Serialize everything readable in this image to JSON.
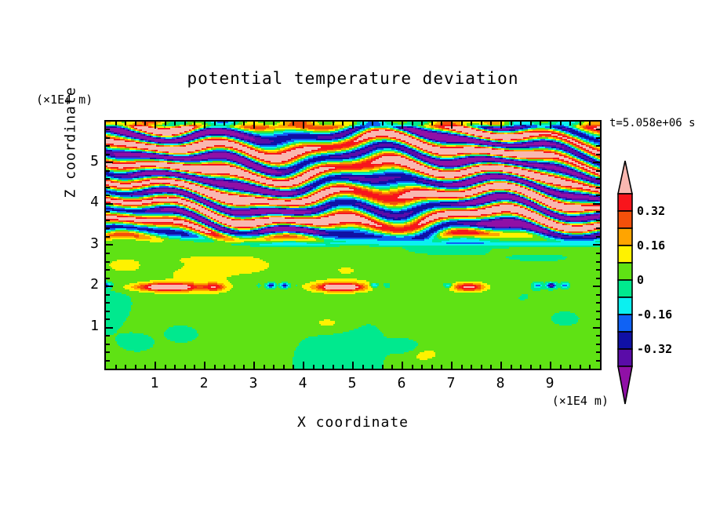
{
  "colors": {
    "background": "#FFFFFF",
    "frame": "#000000",
    "text": "#000000"
  },
  "chart_data": {
    "type": "heatmap",
    "title": "potential temperature deviation",
    "xlabel": "X coordinate",
    "ylabel": "Z coordinate",
    "x_axis_unit": "(×1E4 m)",
    "z_axis_unit": "(×1E4 m)",
    "time_annotation": "t=5.058e+06 s",
    "x_range": [
      0,
      10
    ],
    "z_range": [
      0,
      6
    ],
    "x_major_ticks": [
      "1",
      "2",
      "3",
      "4",
      "5",
      "6",
      "7",
      "8",
      "9"
    ],
    "z_major_ticks": [
      "1",
      "2",
      "3",
      "4",
      "5"
    ],
    "minor_tick_step": 0.2,
    "grid": false,
    "legend_position": "right",
    "colorbar": {
      "tick_labels": [
        "0.32",
        "0.16",
        "0",
        "-0.16",
        "-0.32"
      ],
      "labeled_levels": [
        0.32,
        0.16,
        0,
        -0.16,
        -0.32
      ],
      "levels": [
        -0.4,
        -0.32,
        -0.24,
        -0.16,
        -0.08,
        0,
        0.08,
        0.16,
        0.24,
        0.32,
        0.4
      ],
      "colors_low_to_high": [
        "#9010A6",
        "#5A0CA8",
        "#1010A5",
        "#0F62F5",
        "#0BF0F0",
        "#00E98E",
        "#5FE214",
        "#FFF200",
        "#FFA400",
        "#F4500A",
        "#F8151C",
        "#F9B7B0"
      ],
      "over_arrow_color": "#F9B7B0",
      "under_arrow_color": "#9010A6"
    },
    "field_structure": {
      "description": "Filled-contour potential temperature deviation field: turbulent tilted pink/purple wave-band region above z≈3.2, quiescent green region (spring-green and chartreuse lobes) below z≈3, thin mixed inversion layer with navy dashes and warm patches at z≈2, cyan line near z≈3.0 and blue shear band near z≈3.2 on the right half, mixed green/yellow strip along the very top edge.",
      "procedural": {
        "band_freq": 11.4,
        "band_tilt": 0.7,
        "band_amp": 0.46,
        "band_amp_mod": 0.1,
        "pos_bias": 0.055,
        "ripple_amp": 0.05,
        "quiet_amp": 0.058,
        "quiet_bias": 0.02,
        "mid_bulge": 0.028,
        "layer_z": 2.02,
        "layer_sigma": 0.045,
        "dash_amp": 0.4,
        "patches": [
          [
            1.25,
            0.55,
            0.45
          ],
          [
            4.75,
            0.6,
            0.33
          ],
          [
            7.35,
            0.42,
            0.22
          ],
          [
            2.2,
            0.28,
            0.15
          ]
        ],
        "yellow_spots": [
          [
            6.35,
            0.35
          ],
          [
            2.9,
            2.55
          ],
          [
            0.35,
            2.5
          ],
          [
            4.5,
            1.1
          ]
        ],
        "cyan_spots": [
          [
            0.65,
            0.62
          ],
          [
            1.5,
            0.85
          ],
          [
            9.35,
            1.2
          ],
          [
            6.1,
            0.5
          ]
        ],
        "cyan_line_z": 3.03,
        "cyan_line_amp": 0.13,
        "blue_band_z": 3.2,
        "blue_band_amp": 0.24,
        "transition_z": [
          2.98,
          3.42
        ],
        "top_strip_z": 5.82,
        "clamp": [
          -0.44,
          0.6
        ]
      }
    }
  }
}
